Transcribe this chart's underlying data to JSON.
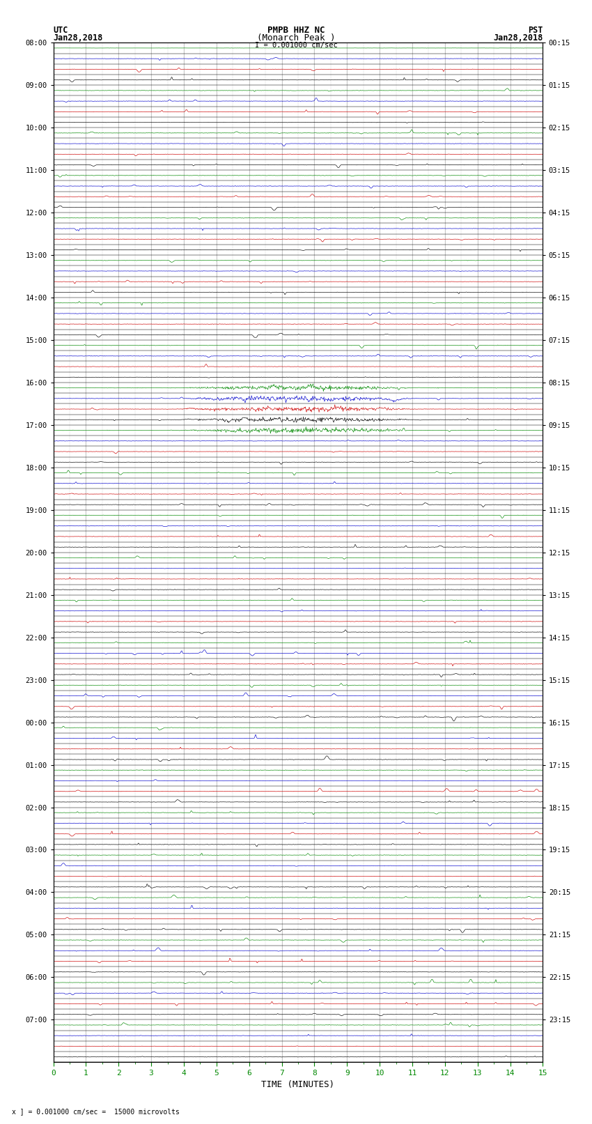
{
  "title_line1": "PMPB HHZ NC",
  "title_line2": "(Monarch Peak )",
  "scale_text": "I = 0.001000 cm/sec",
  "bottom_note": "x ] = 0.001000 cm/sec =  15000 microvolts",
  "xlabel": "TIME (MINUTES)",
  "utc_labels": [
    "08:00",
    "09:00",
    "10:00",
    "11:00",
    "12:00",
    "13:00",
    "14:00",
    "15:00",
    "16:00",
    "17:00",
    "18:00",
    "19:00",
    "20:00",
    "21:00",
    "22:00",
    "23:00",
    "00:00",
    "01:00",
    "02:00",
    "03:00",
    "04:00",
    "05:00",
    "06:00",
    "07:00"
  ],
  "jan29_row": 60,
  "pst_labels": [
    "00:15",
    "01:15",
    "02:15",
    "03:15",
    "04:15",
    "05:15",
    "06:15",
    "07:15",
    "08:15",
    "09:15",
    "10:15",
    "11:15",
    "12:15",
    "13:15",
    "14:15",
    "15:15",
    "16:15",
    "17:15",
    "18:15",
    "19:15",
    "20:15",
    "21:15",
    "22:15",
    "23:15"
  ],
  "n_rows": 96,
  "minutes": 15,
  "samples_per_row": 900,
  "background_color": "#ffffff",
  "trace_colors": [
    "#000000",
    "#cc0000",
    "#0000cc",
    "#008800"
  ],
  "grid_major_color": "#999999",
  "grid_minor_color": "#cccccc",
  "axis_color": "#000000",
  "label_color": "#000000",
  "green_tick_color": "#008800",
  "noise_std": 0.025,
  "spike_scale": 0.12,
  "special_rows": [
    59,
    60,
    61,
    62,
    63
  ],
  "special_amplitude": 0.25,
  "last_row_blue": 95
}
